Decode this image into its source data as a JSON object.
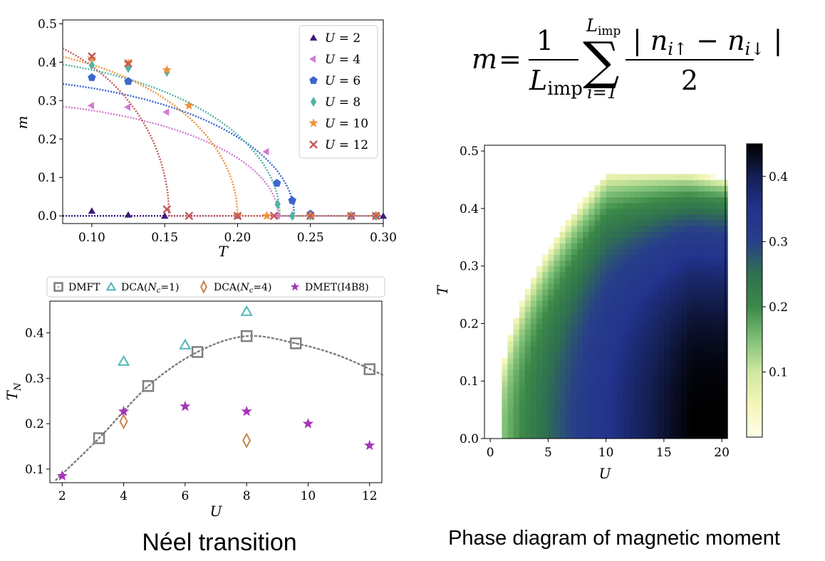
{
  "captions": {
    "left": "Néel transition",
    "right": "Phase diagram of magnetic moment"
  },
  "formula": {
    "lhs": "m",
    "eq": "=",
    "frac_num": "1",
    "frac_den": "L",
    "den_sub": "imp",
    "sum_upper": "L",
    "sum_upper_sub": "imp",
    "sum_lower": "i=1",
    "numerator": "| n",
    "num_sub1": "i↑",
    "minus": " − n",
    "num_sub2": "i↓",
    "num_close": " |",
    "denominator": "2"
  },
  "chart_data": [
    {
      "type": "scatter",
      "xlabel": "T",
      "ylabel": "m",
      "xlim": [
        0.08,
        0.3
      ],
      "ylim": [
        -0.02,
        0.51
      ],
      "xticks": [
        "0.10",
        "0.15",
        "0.20",
        "0.25",
        "0.30"
      ],
      "yticks": [
        "0.0",
        "0.1",
        "0.2",
        "0.3",
        "0.4",
        "0.5"
      ],
      "legend_position": "top-right",
      "series": [
        {
          "name": "U = 2",
          "legend_lhs": "U",
          "legend_rhs": "= 2",
          "marker": "triangle-up",
          "color": "#3f1a7a",
          "points": [
            [
              0.1,
              0.013
            ],
            [
              0.125,
              0.003
            ],
            [
              0.15,
              0.0
            ],
            [
              0.2,
              0.0
            ],
            [
              0.25,
              0.0
            ],
            [
              0.3,
              0.0
            ]
          ],
          "curve": {
            "m0": 0.0,
            "Tc": 0.3
          }
        },
        {
          "name": "U = 4",
          "legend_lhs": "U",
          "legend_rhs": "= 4",
          "marker": "triangle-left",
          "color": "#d17bd0",
          "points": [
            [
              0.1,
              0.287
            ],
            [
              0.125,
              0.283
            ],
            [
              0.1515,
              0.27
            ],
            [
              0.22,
              0.167
            ],
            [
              0.2275,
              0.0
            ],
            [
              0.2375,
              0.0
            ],
            [
              0.25,
              0.0
            ],
            [
              0.278,
              0.0
            ],
            [
              0.295,
              0.0
            ]
          ],
          "curve": {
            "m0": 0.3,
            "Tc": 0.228
          }
        },
        {
          "name": "U = 6",
          "legend_lhs": "U",
          "legend_rhs": "= 6",
          "marker": "pentagon",
          "color": "#3c66cf",
          "points": [
            [
              0.1,
              0.36
            ],
            [
              0.125,
              0.35
            ],
            [
              0.227,
              0.085
            ],
            [
              0.2375,
              0.04
            ],
            [
              0.25,
              0.005
            ],
            [
              0.278,
              0.0
            ],
            [
              0.295,
              0.0
            ]
          ],
          "curve": {
            "m0": 0.36,
            "Tc": 0.239
          }
        },
        {
          "name": "U = 8",
          "legend_lhs": "U",
          "legend_rhs": "= 8",
          "marker": "diamond",
          "color": "#52b3a3",
          "points": [
            [
              0.1,
              0.392
            ],
            [
              0.125,
              0.385
            ],
            [
              0.1515,
              0.375
            ],
            [
              0.2275,
              0.03
            ],
            [
              0.2375,
              0.0
            ],
            [
              0.25,
              0.0
            ],
            [
              0.278,
              0.0
            ],
            [
              0.295,
              0.0
            ]
          ],
          "curve": {
            "m0": 0.415,
            "Tc": 0.229
          }
        },
        {
          "name": "U = 10",
          "legend_lhs": "U",
          "legend_rhs": "= 10",
          "marker": "star",
          "color": "#f0913a",
          "points": [
            [
              0.1,
              0.41
            ],
            [
              0.125,
              0.397
            ],
            [
              0.1515,
              0.38
            ],
            [
              0.1667,
              0.287
            ],
            [
              0.2,
              0.0
            ],
            [
              0.22,
              0.0
            ],
            [
              0.25,
              0.0
            ],
            [
              0.278,
              0.0
            ],
            [
              0.295,
              0.0
            ]
          ],
          "curve": {
            "m0": 0.445,
            "Tc": 0.2
          }
        },
        {
          "name": "U = 12",
          "legend_lhs": "U",
          "legend_rhs": "= 12",
          "marker": "x",
          "color": "#c25a5a",
          "points": [
            [
              0.1,
              0.415
            ],
            [
              0.125,
              0.397
            ],
            [
              0.1515,
              0.017
            ],
            [
              0.1667,
              0.0
            ],
            [
              0.2,
              0.0
            ],
            [
              0.225,
              0.0
            ],
            [
              0.25,
              0.0
            ],
            [
              0.278,
              0.0
            ],
            [
              0.295,
              0.0
            ]
          ],
          "curve": {
            "m0": 0.5,
            "Tc": 0.153
          }
        }
      ]
    },
    {
      "type": "scatter",
      "xlabel": "U",
      "ylabel": "T",
      "ylabel_sub": "N",
      "xlim": [
        1.6,
        12.4
      ],
      "ylim": [
        0.07,
        0.47
      ],
      "xticks": [
        "2",
        "4",
        "6",
        "8",
        "10",
        "12"
      ],
      "yticks": [
        "0.1",
        "0.2",
        "0.3",
        "0.4"
      ],
      "legend_position": "top (above plot)",
      "series": [
        {
          "name": "DMFT",
          "legend_parts": [
            "DMFT"
          ],
          "marker": "square",
          "color": "#7f7f7f",
          "points": [
            [
              3.2,
              0.168
            ],
            [
              4.8,
              0.283
            ],
            [
              6.4,
              0.358
            ],
            [
              8.0,
              0.393
            ],
            [
              9.6,
              0.377
            ],
            [
              12.0,
              0.32
            ]
          ]
        },
        {
          "name": "DCA(Nc=1)",
          "legend_parts": [
            "DCA(",
            "N",
            "c",
            "=1)"
          ],
          "marker": "triangle-up-open",
          "color": "#4fb8b8",
          "points": [
            [
              4.0,
              0.337
            ],
            [
              6.0,
              0.373
            ],
            [
              8.0,
              0.447
            ]
          ]
        },
        {
          "name": "DCA(Nc=4)",
          "legend_parts": [
            "DCA(",
            "N",
            "c",
            "=4)"
          ],
          "marker": "diamond-open",
          "color": "#c8844a",
          "points": [
            [
              4.0,
              0.205
            ],
            [
              8.0,
              0.163
            ]
          ]
        },
        {
          "name": "DMET(I4B8)",
          "legend_parts": [
            "DMET(I4B8)"
          ],
          "marker": "star",
          "color": "#a535b8",
          "points": [
            [
              2.0,
              0.085
            ],
            [
              4.0,
              0.227
            ],
            [
              6.0,
              0.238
            ],
            [
              8.0,
              0.227
            ],
            [
              10.0,
              0.2
            ],
            [
              12.0,
              0.152
            ]
          ]
        }
      ],
      "fit_curve": [
        [
          1.8,
          0.076
        ],
        [
          3.2,
          0.168
        ],
        [
          4.8,
          0.283
        ],
        [
          6.4,
          0.358
        ],
        [
          8.0,
          0.393
        ],
        [
          9.6,
          0.377
        ],
        [
          11.0,
          0.35
        ],
        [
          12.5,
          0.305
        ]
      ]
    },
    {
      "type": "heatmap",
      "xlabel": "U",
      "ylabel": "T",
      "xlim": [
        -0.5,
        20.3
      ],
      "ylim": [
        0.0,
        0.51
      ],
      "xticks": [
        "0",
        "5",
        "10",
        "15",
        "20"
      ],
      "yticks": [
        "0.0",
        "0.1",
        "0.2",
        "0.3",
        "0.4",
        "0.5"
      ],
      "colorbar_range": [
        0.0,
        0.45
      ],
      "colorbar_ticks": [
        "0.1",
        "0.2",
        "0.3",
        "0.4"
      ],
      "colormap": [
        "#ffffe8",
        "#f4f6b8",
        "#d0e8a0",
        "#7fc078",
        "#3c8a48",
        "#2f7050",
        "#283f8a",
        "#22338c",
        "#141f52",
        "#000000"
      ],
      "boundary_note": "colored region bounded by Tc(U): rises from 0.05 at U≈1 to 0.46 at U≈10, flat to U≈17"
    }
  ]
}
